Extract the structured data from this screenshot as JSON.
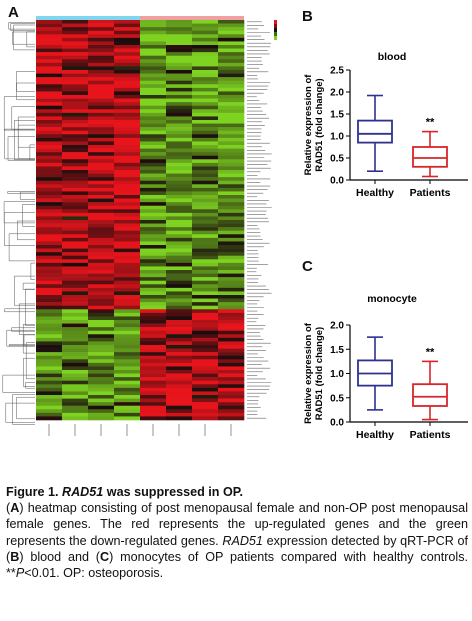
{
  "panels": {
    "a": "A",
    "b": "B",
    "c": "C"
  },
  "chart_data": [
    {
      "type": "heatmap",
      "panel": "A",
      "columns": 8,
      "rows": 112,
      "colors": {
        "up": "#e8141c",
        "down": "#7ed321",
        "neutral": "#1a0d0d"
      },
      "column_group_colors": [
        "#7fd7ef",
        "#f0a0a0"
      ],
      "row_label_count": 112,
      "column_label_count": 8
    },
    {
      "type": "box",
      "panel": "B",
      "title": "blood",
      "ylabel_line1": "Relative expression of",
      "ylabel_line2": "RAD51 (fold change)",
      "ylim": [
        0,
        2.5
      ],
      "yticks": [
        "0.0",
        "0.5",
        "1.0",
        "1.5",
        "2.0",
        "2.5"
      ],
      "categories": [
        "Healthy",
        "Patients"
      ],
      "boxes": [
        {
          "name": "Healthy",
          "min": 0.2,
          "q1": 0.85,
          "median": 1.05,
          "q3": 1.35,
          "max": 1.92,
          "color": "#2e3192"
        },
        {
          "name": "Patients",
          "min": 0.08,
          "q1": 0.3,
          "median": 0.5,
          "q3": 0.75,
          "max": 1.1,
          "color": "#d7262a"
        }
      ],
      "annotation": "**"
    },
    {
      "type": "box",
      "panel": "C",
      "title": "monocyte",
      "ylabel_line1": "Relative expression of",
      "ylabel_line2": "RAD51 (fold change)",
      "ylim": [
        0,
        2.0
      ],
      "yticks": [
        "0.0",
        "0.5",
        "1.0",
        "1.5",
        "2.0"
      ],
      "categories": [
        "Healthy",
        "Patients"
      ],
      "boxes": [
        {
          "name": "Healthy",
          "min": 0.25,
          "q1": 0.75,
          "median": 1.0,
          "q3": 1.27,
          "max": 1.75,
          "color": "#2e3192"
        },
        {
          "name": "Patients",
          "min": 0.05,
          "q1": 0.33,
          "median": 0.52,
          "q3": 0.78,
          "max": 1.25,
          "color": "#d7262a"
        }
      ],
      "annotation": "**"
    }
  ],
  "caption": {
    "title_prefix": "Figure 1. ",
    "title_gene": "RAD51",
    "title_suffix": " was suppressed in OP.",
    "a_open": "(",
    "a_letter": "A",
    "a_text": ") heatmap consisting of post menopausal female and non-OP post menopausal female genes. The red represents the up-regulated genes and the green represents the down-regulated genes. ",
    "gene2": "RAD51",
    "expr_text": " expression detected by qRT-PCR of (",
    "b_letter": "B",
    "bc_text": ") blood and (",
    "c_letter": "C",
    "c_text": ") monocytes of OP patients compared with healthy controls. **",
    "p_letter": "P",
    "p_text": "<0.01. OP: osteoporosis."
  }
}
